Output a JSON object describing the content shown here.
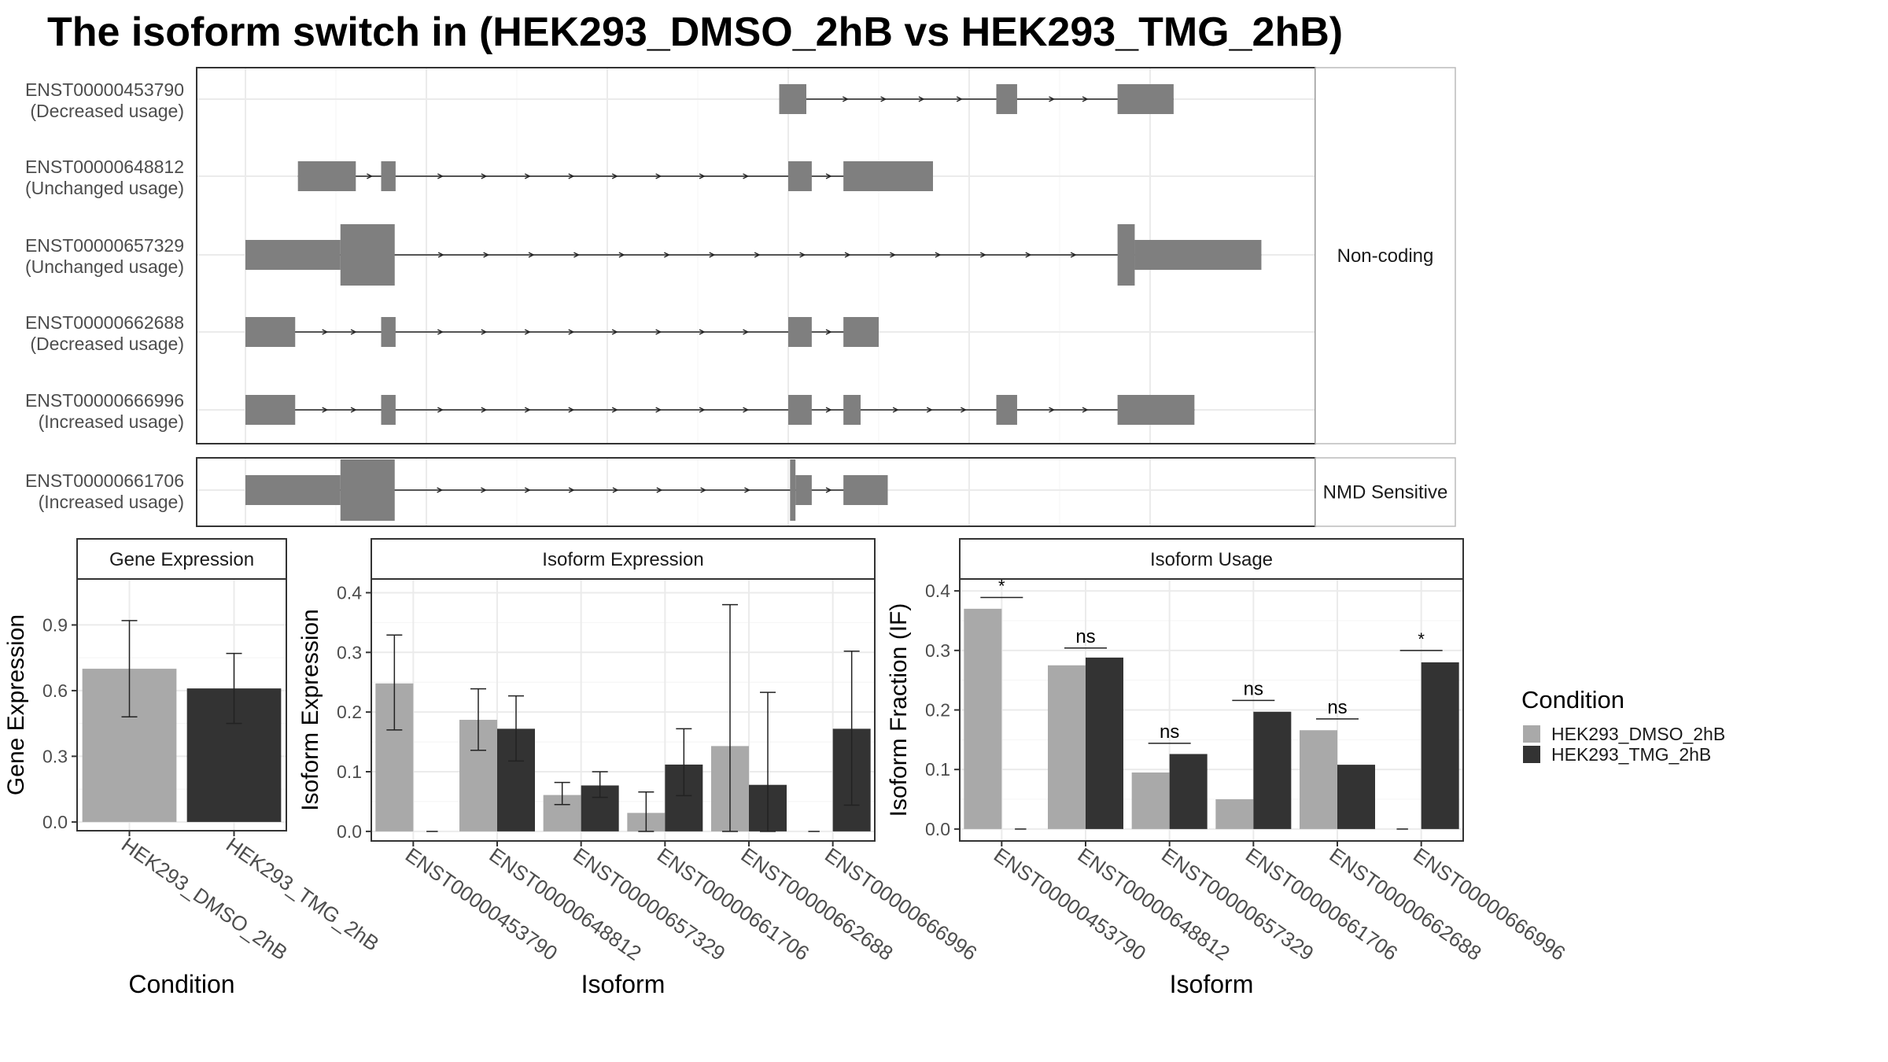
{
  "title": "The isoform switch in  (HEK293_DMSO_2hB vs HEK293_TMG_2hB)",
  "colors": {
    "exon": "#7f7f7f",
    "dmso": "#a9a9a9",
    "tmg": "#333333",
    "grid": "#ebebeb",
    "strip_bg": "#f5f5f5"
  },
  "structure": {
    "coord_range": [
      0,
      100
    ],
    "x_break_values": [
      0,
      20,
      40,
      60,
      80,
      100
    ],
    "rows": [
      {
        "id": "ENST00000453790",
        "usage": "(Decreased usage)",
        "panel": "Non-coding",
        "exons": [
          [
            59,
            62,
            "nc"
          ],
          [
            83,
            85.3,
            "nc"
          ],
          [
            96.4,
            102.6,
            "nc"
          ]
        ]
      },
      {
        "id": "ENST00000648812",
        "usage": "(Unchanged usage)",
        "panel": "Non-coding",
        "exons": [
          [
            5.8,
            12.2,
            "nc"
          ],
          [
            15,
            16.6,
            "nc"
          ],
          [
            60,
            62.6,
            "nc"
          ],
          [
            66.1,
            76,
            "nc"
          ]
        ]
      },
      {
        "id": "ENST00000657329",
        "usage": "(Unchanged usage)",
        "panel": "Non-coding",
        "exons": [
          [
            0,
            10.5,
            "nc"
          ],
          [
            10.5,
            16.5,
            "cds"
          ],
          [
            96.4,
            98.3,
            "cds"
          ],
          [
            98.3,
            112.3,
            "nc"
          ]
        ]
      },
      {
        "id": "ENST00000662688",
        "usage": "(Decreased usage)",
        "panel": "Non-coding",
        "exons": [
          [
            0,
            5.5,
            "nc"
          ],
          [
            15,
            16.6,
            "nc"
          ],
          [
            60,
            62.6,
            "nc"
          ],
          [
            66.1,
            70,
            "nc"
          ]
        ]
      },
      {
        "id": "ENST00000666996",
        "usage": "(Increased usage)",
        "panel": "Non-coding",
        "exons": [
          [
            0,
            5.5,
            "nc"
          ],
          [
            15,
            16.6,
            "nc"
          ],
          [
            60,
            62.6,
            "nc"
          ],
          [
            66.1,
            68,
            "nc"
          ],
          [
            83,
            85.3,
            "nc"
          ],
          [
            96.4,
            104.9,
            "nc"
          ]
        ]
      },
      {
        "id": "ENST00000661706",
        "usage": "(Increased usage)",
        "panel": "NMD Sensitive",
        "exons": [
          [
            0,
            10.5,
            "nc"
          ],
          [
            10.5,
            16.5,
            "cds"
          ],
          [
            60.2,
            60.8,
            "cds"
          ],
          [
            60.8,
            62.6,
            "nc"
          ],
          [
            66.1,
            71,
            "nc"
          ]
        ]
      }
    ],
    "panel_labels": [
      "Non-coding",
      "NMD Sensitive"
    ]
  },
  "chart_data": [
    {
      "type": "bar",
      "strip": "Gene Expression",
      "xlabel": "Condition",
      "ylabel": "Gene Expression",
      "ylim": [
        -0.04,
        1.11
      ],
      "yticks": [
        0.0,
        0.3,
        0.6,
        0.9
      ],
      "ytick_labels": [
        "0.0",
        "0.3",
        "0.6",
        "0.9"
      ],
      "categories": [
        "HEK293_DMSO_2hB",
        "HEK293_TMG_2hB"
      ],
      "values": [
        0.7,
        0.61
      ],
      "error": [
        [
          0.48,
          0.92
        ],
        [
          0.45,
          0.77
        ]
      ]
    },
    {
      "type": "bar",
      "strip": "Isoform Expression",
      "xlabel": "Isoform",
      "ylabel": "Isoform Expression",
      "ylim": [
        -0.016,
        0.423
      ],
      "yticks": [
        0.0,
        0.1,
        0.2,
        0.3,
        0.4
      ],
      "ytick_labels": [
        "0.0",
        "0.1",
        "0.2",
        "0.3",
        "0.4"
      ],
      "categories": [
        "ENST00000453790",
        "ENST00000648812",
        "ENST00000657329",
        "ENST00000661706",
        "ENST00000662688",
        "ENST00000666996"
      ],
      "series": [
        {
          "name": "HEK293_DMSO_2hB",
          "values": [
            0.248,
            0.187,
            0.061,
            0.031,
            0.143,
            0.0
          ],
          "error": [
            [
              0.17,
              0.329
            ],
            [
              0.136,
              0.239
            ],
            [
              0.045,
              0.082
            ],
            [
              0.0,
              0.066
            ],
            [
              0.0,
              0.38
            ],
            null
          ]
        },
        {
          "name": "HEK293_TMG_2hB",
          "values": [
            0.0,
            0.172,
            0.077,
            0.112,
            0.078,
            0.172
          ],
          "error": [
            null,
            [
              0.118,
              0.227
            ],
            [
              0.057,
              0.1
            ],
            [
              0.06,
              0.172
            ],
            [
              0.0,
              0.233
            ],
            [
              0.044,
              0.302
            ]
          ]
        }
      ]
    },
    {
      "type": "bar",
      "strip": "Isoform Usage",
      "xlabel": "Isoform",
      "ylabel": "Isoform Fraction (IF)",
      "ylim": [
        -0.02,
        0.42
      ],
      "yticks": [
        0.0,
        0.1,
        0.2,
        0.3,
        0.4
      ],
      "ytick_labels": [
        "0.0",
        "0.1",
        "0.2",
        "0.3",
        "0.4"
      ],
      "categories": [
        "ENST00000453790",
        "ENST00000648812",
        "ENST00000657329",
        "ENST00000661706",
        "ENST00000662688",
        "ENST00000666996"
      ],
      "series": [
        {
          "name": "HEK293_DMSO_2hB",
          "values": [
            0.37,
            0.275,
            0.095,
            0.05,
            0.166,
            0.0
          ]
        },
        {
          "name": "HEK293_TMG_2hB",
          "values": [
            0.0,
            0.288,
            0.126,
            0.197,
            0.108,
            0.28
          ]
        }
      ],
      "significance": [
        {
          "label": "*",
          "level": 0.389
        },
        {
          "label": "ns",
          "level": 0.304
        },
        {
          "label": "ns",
          "level": 0.144
        },
        {
          "label": "ns",
          "level": 0.216
        },
        {
          "label": "ns",
          "level": 0.185
        },
        {
          "label": "*",
          "level": 0.3
        }
      ]
    }
  ],
  "legend": {
    "title": "Condition",
    "placement": "right",
    "items": [
      {
        "label": "HEK293_DMSO_2hB",
        "color": "#a9a9a9"
      },
      {
        "label": "HEK293_TMG_2hB",
        "color": "#333333"
      }
    ]
  }
}
